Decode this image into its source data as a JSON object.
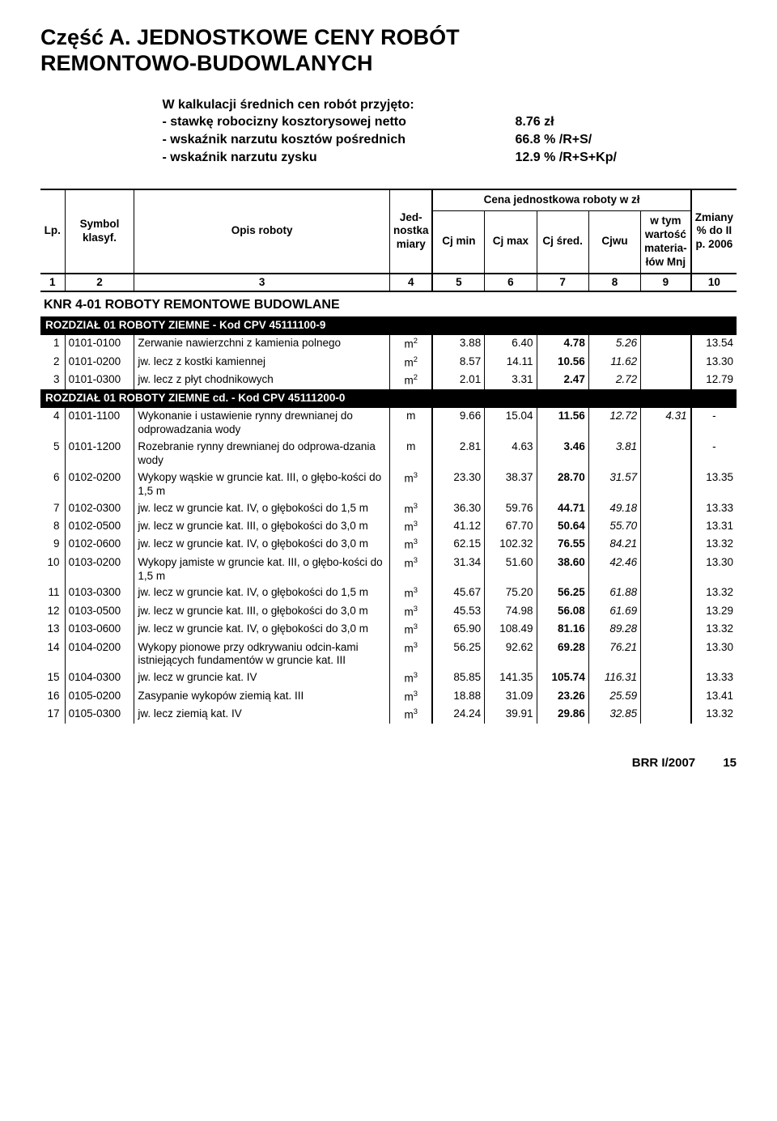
{
  "title": {
    "line1": "Część A. JEDNOSTKOWE CENY ROBÓT",
    "line2": "REMONTOWO-BUDOWLANYCH"
  },
  "intro": {
    "heading": "W kalkulacji średnich cen robót przyjęto:",
    "rows": [
      {
        "label": "- stawkę robocizny kosztorysowej netto",
        "val": "8.76 zł"
      },
      {
        "label": "- wskaźnik narzutu kosztów pośrednich",
        "val": "66.8 % /R+S/"
      },
      {
        "label": "- wskaźnik narzutu zysku",
        "val": "12.9 % /R+S+Kp/"
      }
    ]
  },
  "header": {
    "lp": "Lp.",
    "symbol": "Symbol klasyf.",
    "opis": "Opis roboty",
    "jedn": "Jed-nostka miary",
    "cena_span": "Cena jednostkowa roboty w zł",
    "cjmin": "Cj min",
    "cjmax": "Cj max",
    "cjsred": "Cj śred.",
    "cjwu": "Cjwu",
    "wtym": "w tym wartość materia-łów Mnj",
    "zmiany": "Zmiany % do II p. 2006",
    "nums": [
      "1",
      "2",
      "3",
      "4",
      "5",
      "6",
      "7",
      "8",
      "9",
      "10"
    ]
  },
  "section_title": "KNR 4-01 ROBOTY REMONTOWE BUDOWLANE",
  "band1": "ROZDZIAŁ 01 ROBOTY ZIEMNE - Kod CPV 45111100-9",
  "band2": "ROZDZIAŁ 01 ROBOTY ZIEMNE cd. - Kod CPV 45111200-0",
  "rows1": [
    {
      "lp": "1",
      "sym": "0101-0100",
      "desc": "Zerwanie nawierzchni z kamienia polnego",
      "unit": "m²",
      "cjmin": "3.88",
      "cjmax": "6.40",
      "cjsred": "4.78",
      "cjwu": "5.26",
      "mnj": "",
      "zm": "13.54"
    },
    {
      "lp": "2",
      "sym": "0101-0200",
      "desc": "jw. lecz z kostki kamiennej",
      "unit": "m²",
      "cjmin": "8.57",
      "cjmax": "14.11",
      "cjsred": "10.56",
      "cjwu": "11.62",
      "mnj": "",
      "zm": "13.30"
    },
    {
      "lp": "3",
      "sym": "0101-0300",
      "desc": "jw. lecz z płyt chodnikowych",
      "unit": "m²",
      "cjmin": "2.01",
      "cjmax": "3.31",
      "cjsred": "2.47",
      "cjwu": "2.72",
      "mnj": "",
      "zm": "12.79"
    }
  ],
  "rows2": [
    {
      "lp": "4",
      "sym": "0101-1100",
      "desc": "Wykonanie i ustawienie rynny drewnianej do odprowadzania wody",
      "unit": "m",
      "cjmin": "9.66",
      "cjmax": "15.04",
      "cjsred": "11.56",
      "cjwu": "12.72",
      "mnj": "4.31",
      "zm": "-"
    },
    {
      "lp": "5",
      "sym": "0101-1200",
      "desc": "Rozebranie rynny drewnianej do odprowa-dzania wody",
      "unit": "m",
      "cjmin": "2.81",
      "cjmax": "4.63",
      "cjsred": "3.46",
      "cjwu": "3.81",
      "mnj": "",
      "zm": "-"
    },
    {
      "lp": "6",
      "sym": "0102-0200",
      "desc": "Wykopy wąskie w gruncie kat. III, o głębo-kości do 1,5 m",
      "unit": "m³",
      "cjmin": "23.30",
      "cjmax": "38.37",
      "cjsred": "28.70",
      "cjwu": "31.57",
      "mnj": "",
      "zm": "13.35"
    },
    {
      "lp": "7",
      "sym": "0102-0300",
      "desc": "jw. lecz w gruncie kat. IV, o głębokości do 1,5 m",
      "unit": "m³",
      "cjmin": "36.30",
      "cjmax": "59.76",
      "cjsred": "44.71",
      "cjwu": "49.18",
      "mnj": "",
      "zm": "13.33"
    },
    {
      "lp": "8",
      "sym": "0102-0500",
      "desc": "jw. lecz w gruncie kat. III, o głębokości do 3,0 m",
      "unit": "m³",
      "cjmin": "41.12",
      "cjmax": "67.70",
      "cjsred": "50.64",
      "cjwu": "55.70",
      "mnj": "",
      "zm": "13.31"
    },
    {
      "lp": "9",
      "sym": "0102-0600",
      "desc": "jw. lecz w gruncie kat. IV, o głębokości do 3,0 m",
      "unit": "m³",
      "cjmin": "62.15",
      "cjmax": "102.32",
      "cjsred": "76.55",
      "cjwu": "84.21",
      "mnj": "",
      "zm": "13.32"
    },
    {
      "lp": "10",
      "sym": "0103-0200",
      "desc": "Wykopy jamiste w gruncie kat. III, o głębo-kości do 1,5 m",
      "unit": "m³",
      "cjmin": "31.34",
      "cjmax": "51.60",
      "cjsred": "38.60",
      "cjwu": "42.46",
      "mnj": "",
      "zm": "13.30"
    },
    {
      "lp": "11",
      "sym": "0103-0300",
      "desc": "jw. lecz w gruncie kat. IV, o głębokości do 1,5 m",
      "unit": "m³",
      "cjmin": "45.67",
      "cjmax": "75.20",
      "cjsred": "56.25",
      "cjwu": "61.88",
      "mnj": "",
      "zm": "13.32"
    },
    {
      "lp": "12",
      "sym": "0103-0500",
      "desc": "jw. lecz w gruncie kat. III, o głębokości do 3,0 m",
      "unit": "m³",
      "cjmin": "45.53",
      "cjmax": "74.98",
      "cjsred": "56.08",
      "cjwu": "61.69",
      "mnj": "",
      "zm": "13.29"
    },
    {
      "lp": "13",
      "sym": "0103-0600",
      "desc": "jw. lecz w gruncie kat. IV, o głębokości do 3,0 m",
      "unit": "m³",
      "cjmin": "65.90",
      "cjmax": "108.49",
      "cjsred": "81.16",
      "cjwu": "89.28",
      "mnj": "",
      "zm": "13.32"
    },
    {
      "lp": "14",
      "sym": "0104-0200",
      "desc": "Wykopy pionowe przy odkrywaniu odcin-kami istniejących fundamentów w gruncie kat. III",
      "unit": "m³",
      "cjmin": "56.25",
      "cjmax": "92.62",
      "cjsred": "69.28",
      "cjwu": "76.21",
      "mnj": "",
      "zm": "13.30"
    },
    {
      "lp": "15",
      "sym": "0104-0300",
      "desc": "jw. lecz w gruncie kat. IV",
      "unit": "m³",
      "cjmin": "85.85",
      "cjmax": "141.35",
      "cjsred": "105.74",
      "cjwu": "116.31",
      "mnj": "",
      "zm": "13.33"
    },
    {
      "lp": "16",
      "sym": "0105-0200",
      "desc": "Zasypanie wykopów ziemią kat. III",
      "unit": "m³",
      "cjmin": "18.88",
      "cjmax": "31.09",
      "cjsred": "23.26",
      "cjwu": "25.59",
      "mnj": "",
      "zm": "13.41"
    },
    {
      "lp": "17",
      "sym": "0105-0300",
      "desc": "jw. lecz ziemią kat. IV",
      "unit": "m³",
      "cjmin": "24.24",
      "cjmax": "39.91",
      "cjsred": "29.86",
      "cjwu": "32.85",
      "mnj": "",
      "zm": "13.32"
    }
  ],
  "footer": {
    "brr": "BRR I/2007",
    "page": "15"
  },
  "cols": {
    "lp": "3.5%",
    "sym": "10%",
    "desc": "37%",
    "unit": "6%",
    "cjmin": "7.5%",
    "cjmax": "7.5%",
    "cjsred": "7.5%",
    "cjwu": "7.5%",
    "mnj": "7%",
    "zm": "6%"
  }
}
